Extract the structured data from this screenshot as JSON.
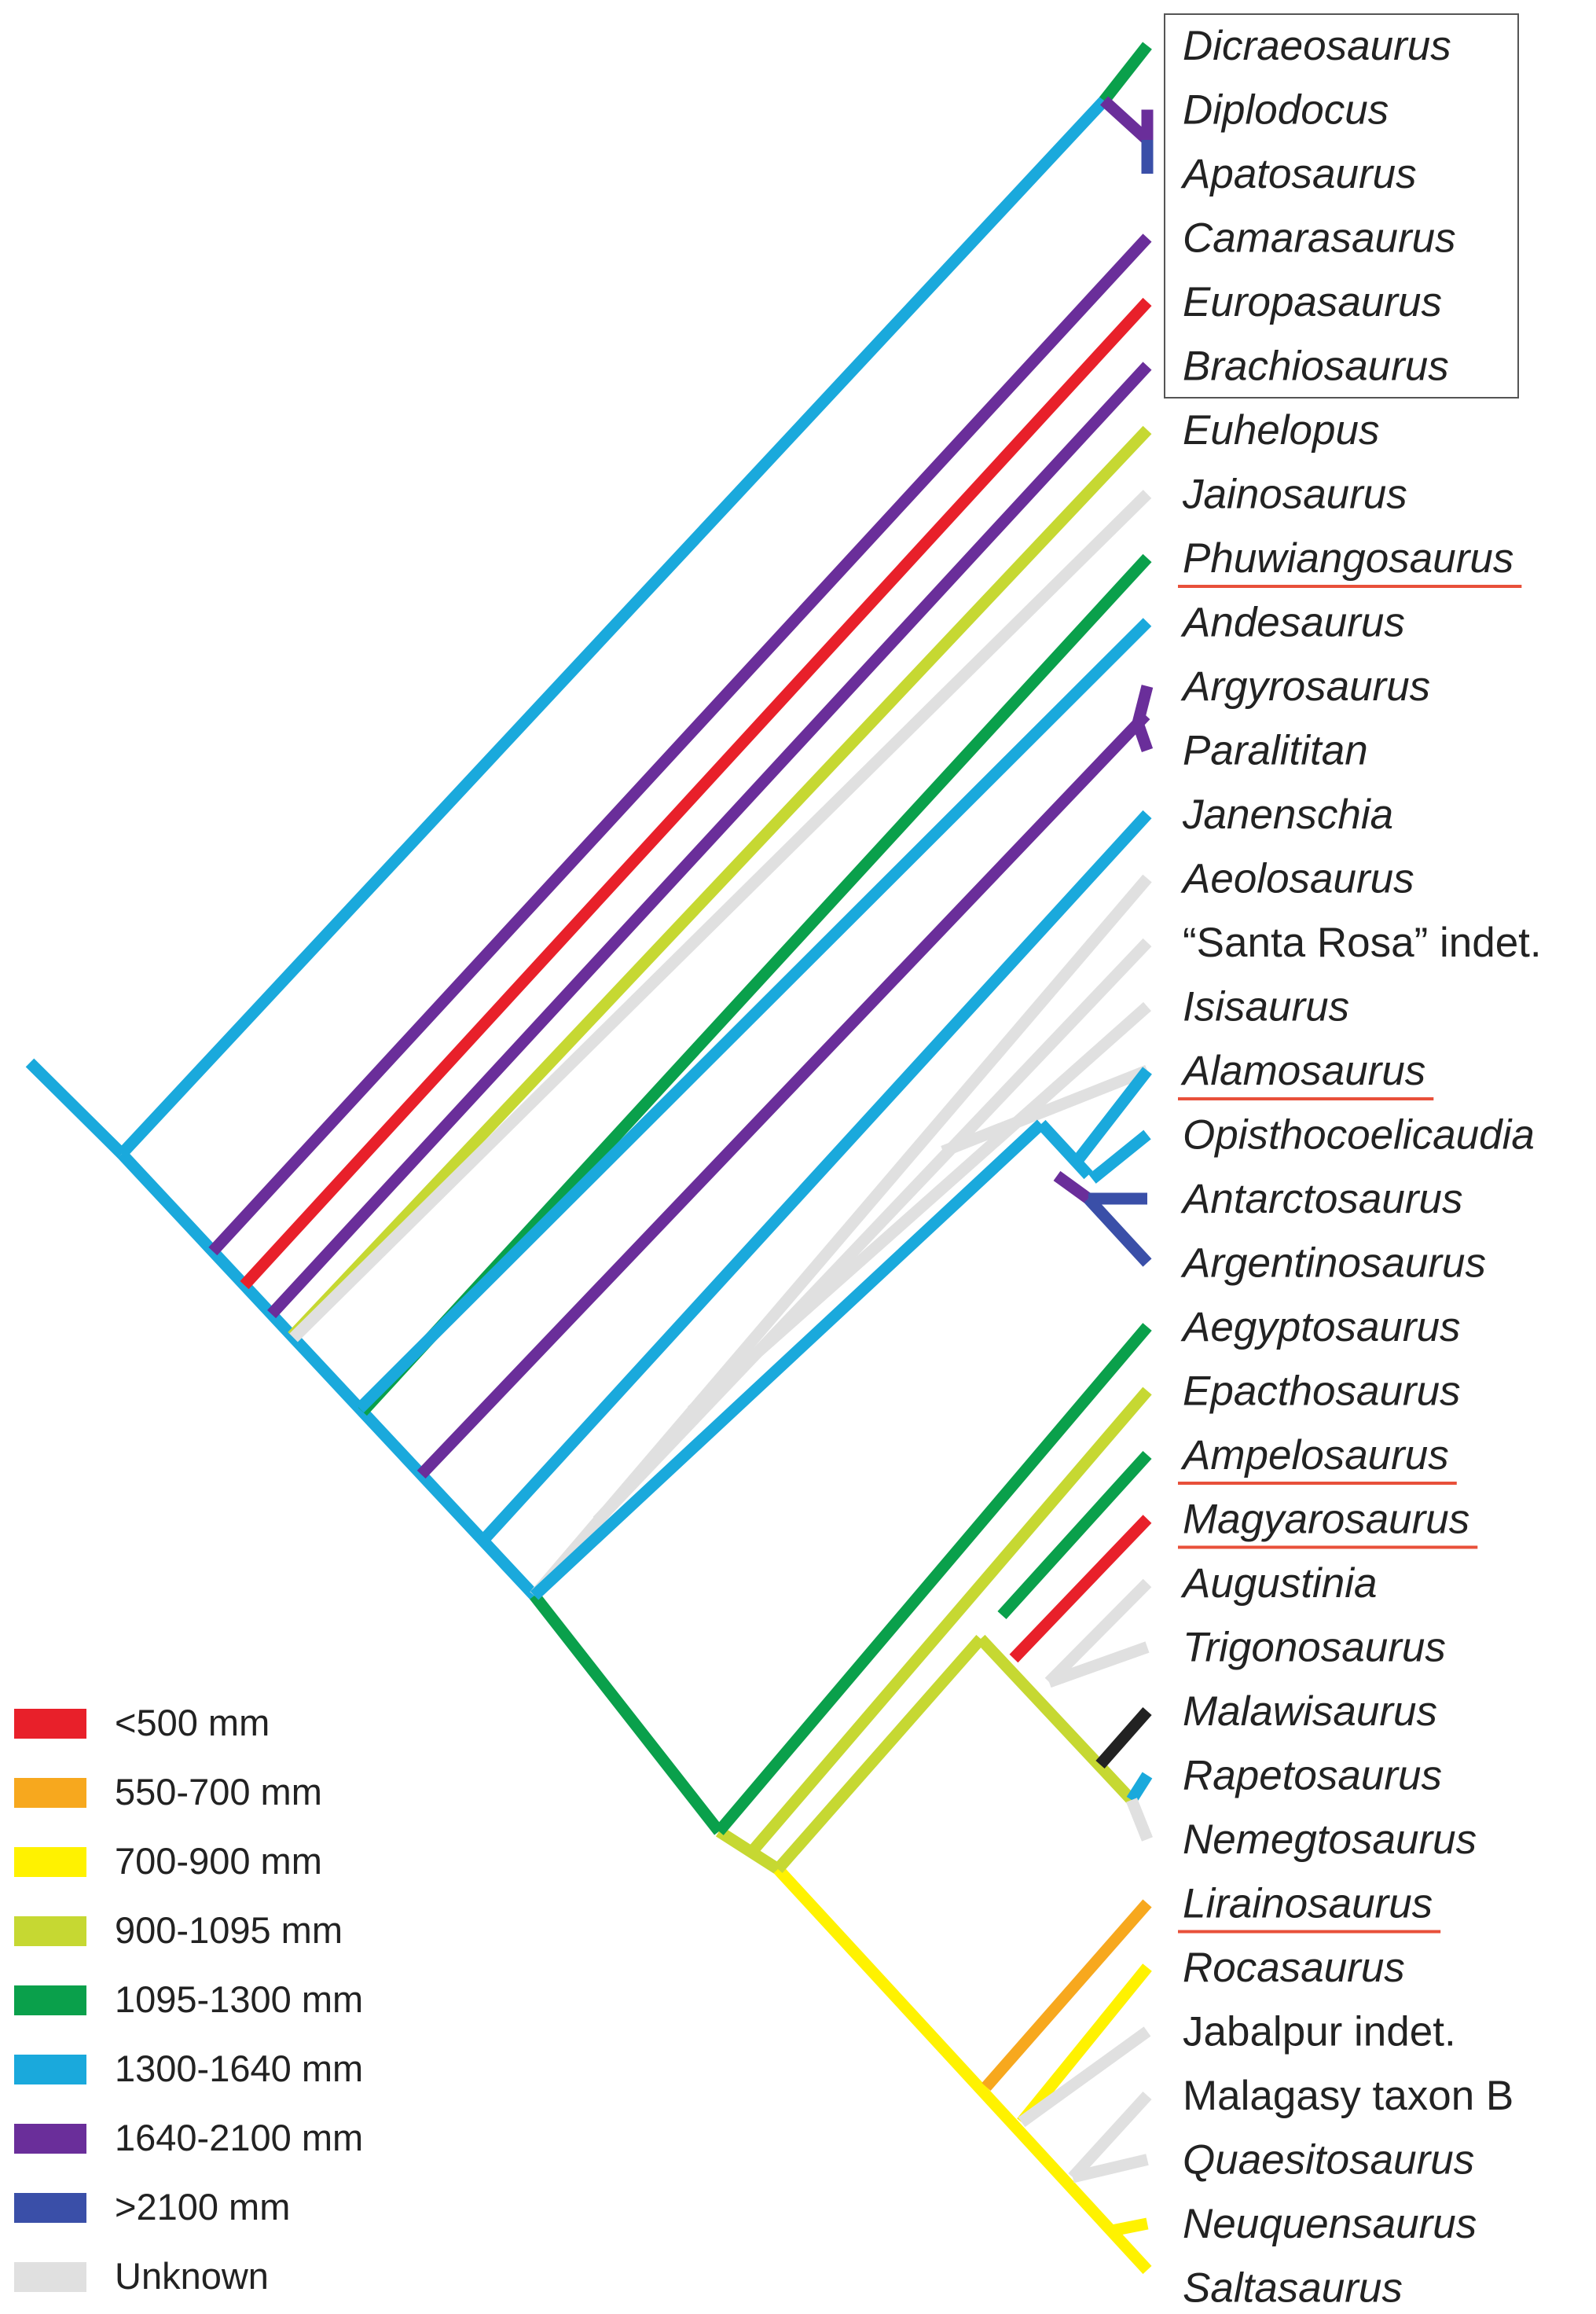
{
  "taxa": [
    {
      "name": "Dicraeosaurus",
      "italic": true,
      "underline": false,
      "color": "#0aa04b"
    },
    {
      "name": "Diplodocus",
      "italic": true,
      "underline": false,
      "color": "#6a2e9a"
    },
    {
      "name": "Apatosaurus",
      "italic": true,
      "underline": false,
      "color": "#3a4fa8"
    },
    {
      "name": "Camarasaurus",
      "italic": true,
      "underline": false,
      "color": "#6a2e9a"
    },
    {
      "name": "Europasaurus",
      "italic": true,
      "underline": false,
      "color": "#e8202a"
    },
    {
      "name": "Brachiosaurus",
      "italic": true,
      "underline": false,
      "color": "#6a2e9a"
    },
    {
      "name": "Euhelopus",
      "italic": true,
      "underline": false,
      "color": "#c6d832"
    },
    {
      "name": "Jainosaurus",
      "italic": true,
      "underline": false,
      "color": "#e0e0e0"
    },
    {
      "name": "Phuwiangosaurus",
      "italic": true,
      "underline": true,
      "color": "#0aa04b"
    },
    {
      "name": "Andesaurus",
      "italic": true,
      "underline": false,
      "color": "#1aa9dc"
    },
    {
      "name": "Argyrosaurus",
      "italic": true,
      "underline": false,
      "color": "#6a2e9a"
    },
    {
      "name": "Paralititan",
      "italic": true,
      "underline": false,
      "color": "#6a2e9a"
    },
    {
      "name": "Janenschia",
      "italic": true,
      "underline": false,
      "color": "#1aa9dc"
    },
    {
      "name": "Aeolosaurus",
      "italic": true,
      "underline": false,
      "color": "#e0e0e0"
    },
    {
      "name": "“Santa Rosa” indet.",
      "italic": false,
      "underline": false,
      "color": "#e0e0e0"
    },
    {
      "name": "Isisaurus",
      "italic": true,
      "underline": false,
      "color": "#e0e0e0"
    },
    {
      "name": "Alamosaurus",
      "italic": true,
      "underline": true,
      "color": "#1aa9dc"
    },
    {
      "name": "Opisthocoelicaudia",
      "italic": true,
      "underline": false,
      "color": "#1aa9dc"
    },
    {
      "name": "Antarctosaurus",
      "italic": true,
      "underline": false,
      "color": "#3a4fa8"
    },
    {
      "name": "Argentinosaurus",
      "italic": true,
      "underline": false,
      "color": "#3a4fa8"
    },
    {
      "name": "Aegyptosaurus",
      "italic": true,
      "underline": false,
      "color": "#0aa04b"
    },
    {
      "name": "Epacthosaurus",
      "italic": true,
      "underline": false,
      "color": "#c6d832"
    },
    {
      "name": "Ampelosaurus",
      "italic": true,
      "underline": true,
      "color": "#0aa04b"
    },
    {
      "name": "Magyarosaurus",
      "italic": true,
      "underline": true,
      "color": "#e8202a"
    },
    {
      "name": "Augustinia",
      "italic": true,
      "underline": false,
      "color": "#e0e0e0"
    },
    {
      "name": "Trigonosaurus",
      "italic": true,
      "underline": false,
      "color": "#e0e0e0"
    },
    {
      "name": "Malawisaurus",
      "italic": true,
      "underline": false,
      "color": "#222222"
    },
    {
      "name": "Rapetosaurus",
      "italic": true,
      "underline": false,
      "color": "#1aa9dc"
    },
    {
      "name": "Nemegtosaurus",
      "italic": true,
      "underline": false,
      "color": "#e0e0e0"
    },
    {
      "name": "Lirainosaurus",
      "italic": true,
      "underline": true,
      "color": "#f7a81e"
    },
    {
      "name": "Rocasaurus",
      "italic": true,
      "underline": false,
      "color": "#fff200"
    },
    {
      "name": "Jabalpur indet.",
      "italic": false,
      "underline": false,
      "color": "#e0e0e0"
    },
    {
      "name": "Malagasy taxon B",
      "italic": false,
      "underline": false,
      "color": "#e0e0e0"
    },
    {
      "name": "Quaesitosaurus",
      "italic": true,
      "underline": false,
      "color": "#e0e0e0"
    },
    {
      "name": "Neuquensaurus",
      "italic": true,
      "underline": false,
      "color": "#fff200"
    },
    {
      "name": "Saltasaurus",
      "italic": true,
      "underline": false,
      "color": "#fff200"
    }
  ],
  "legend": [
    {
      "label": "<500 mm",
      "color": "#e8202a"
    },
    {
      "label": "550-700 mm",
      "color": "#f7a81e"
    },
    {
      "label": "700-900 mm",
      "color": "#fff200"
    },
    {
      "label": "900-1095 mm",
      "color": "#c6d832"
    },
    {
      "label": "1095-1300 mm",
      "color": "#0aa04b"
    },
    {
      "label": "1300-1640 mm",
      "color": "#1aa9dc"
    },
    {
      "label": "1640-2100 mm",
      "color": "#6a2e9a"
    },
    {
      "label": ">2100 mm",
      "color": "#3a4fa8"
    },
    {
      "label": "Unknown",
      "color": "#e0e0e0"
    }
  ],
  "colors": {
    "underline": "#e8503a",
    "box_border": "#555555",
    "text": "#222222"
  }
}
